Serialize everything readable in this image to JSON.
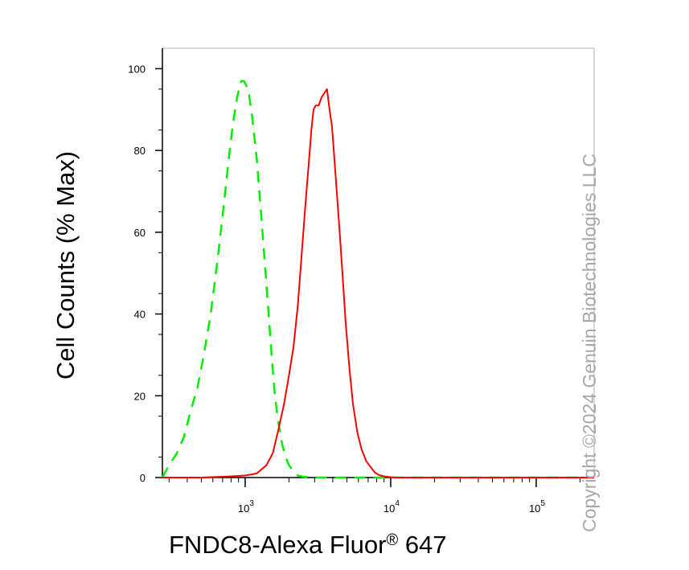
{
  "chart_data": {
    "type": "line",
    "title": "",
    "xlabel": "FNDC8-Alexa Fluor® 647",
    "xlabel_main": "FNDC8-Alexa Fluor",
    "xlabel_sup": "®",
    "xlabel_end": " 647",
    "ylabel": "Cell Counts (% Max)",
    "x_scale": "log",
    "xlim": [
      270,
      250000
    ],
    "ylim": [
      0,
      105
    ],
    "x_ticks": [
      {
        "base": "10",
        "exp": "3",
        "value": 1000
      },
      {
        "base": "10",
        "exp": "4",
        "value": 10000
      },
      {
        "base": "10",
        "exp": "5",
        "value": 100000
      }
    ],
    "y_ticks": [
      "0",
      "20",
      "40",
      "60",
      "80",
      "100"
    ],
    "grid": false,
    "legend": "none",
    "series": [
      {
        "color": "#00ee00",
        "dash": true,
        "x": [
          270,
          300,
          340,
          380,
          420,
          470,
          520,
          580,
          640,
          700,
          760,
          820,
          880,
          940,
          980,
          1050,
          1120,
          1200,
          1290,
          1380,
          1450,
          1520,
          1600,
          1700,
          1800,
          1900,
          2000,
          2150,
          2300,
          2500,
          2800,
          3200,
          4000,
          6000,
          10000,
          30000,
          100000,
          250000
        ],
        "y": [
          0,
          3,
          6,
          10,
          16,
          22,
          30,
          40,
          52,
          64,
          76,
          86,
          93,
          97,
          97,
          95,
          88,
          78,
          64,
          50,
          40,
          30,
          20,
          13,
          8,
          5,
          3,
          1.5,
          0.5,
          0.2,
          0.1,
          0,
          0,
          0,
          0,
          0,
          0,
          0
        ]
      },
      {
        "color": "#ff0000",
        "dash": false,
        "x": [
          270,
          500,
          800,
          1000,
          1200,
          1400,
          1550,
          1700,
          1850,
          2000,
          2150,
          2300,
          2450,
          2600,
          2750,
          2850,
          2950,
          3050,
          3200,
          3350,
          3500,
          3650,
          3800,
          3950,
          4100,
          4300,
          4500,
          4700,
          4900,
          5200,
          5500,
          5900,
          6300,
          6800,
          7300,
          7800,
          8300,
          9000,
          10000,
          11000,
          20000,
          100000,
          250000
        ],
        "y": [
          0,
          0,
          0.3,
          0.5,
          1,
          3,
          6,
          12,
          18,
          25,
          32,
          42,
          55,
          67,
          78,
          85,
          90,
          91,
          91,
          93,
          94,
          95,
          90,
          86,
          78,
          68,
          58,
          48,
          38,
          27,
          18,
          11,
          7,
          4,
          2.5,
          1.2,
          0.6,
          0.3,
          0.1,
          0,
          0,
          0,
          0
        ]
      }
    ]
  },
  "watermark": "Copyright ©2024 Genuin Biotechnologies LLC"
}
